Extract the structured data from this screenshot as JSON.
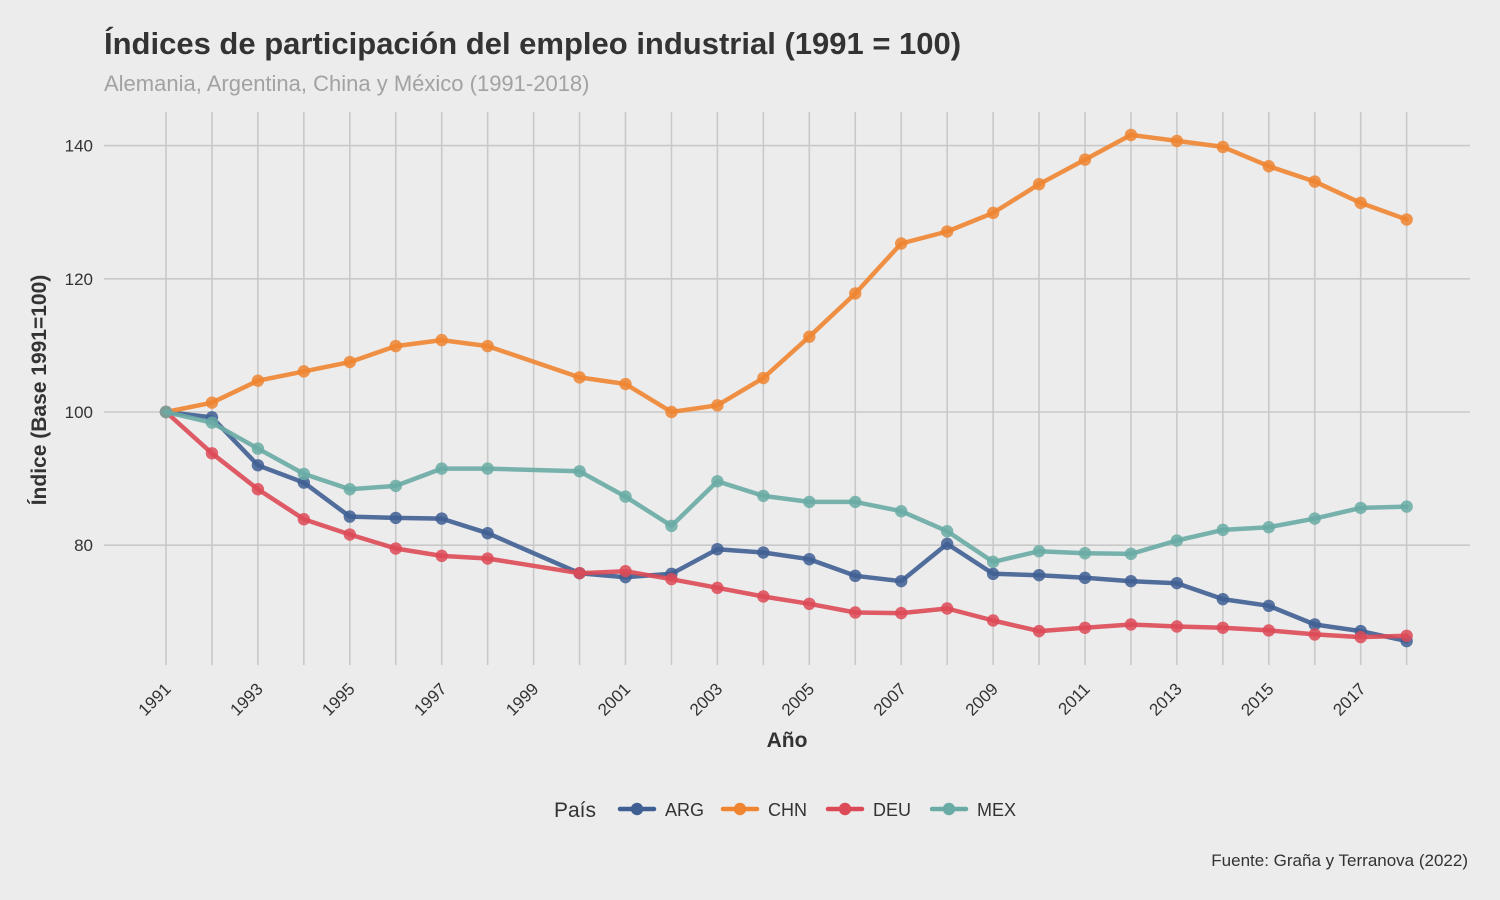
{
  "chart_data": {
    "type": "line",
    "title": "Índices de participación del empleo industrial (1991 = 100)",
    "subtitle": "Alemania, Argentina, China y México (1991-2018)",
    "xlabel": "Año",
    "ylabel": "Índice (Base 1991=100)",
    "caption": "Fuente: Graña y Terranova (2022)",
    "legend_title": "País",
    "legend_position": "bottom",
    "grid": true,
    "xlim": [
      1991,
      2018
    ],
    "ylim": [
      62,
      145
    ],
    "x_ticks": [
      1991,
      1993,
      1995,
      1997,
      1999,
      2001,
      2003,
      2005,
      2007,
      2009,
      2011,
      2013,
      2015,
      2017
    ],
    "x_tick_labels": [
      "1991",
      "1993",
      "1995",
      "1997",
      "1999",
      "2001",
      "2003",
      "2005",
      "2007",
      "2009",
      "2011",
      "2013",
      "2015",
      "2017"
    ],
    "y_ticks": [
      80,
      100,
      120,
      140
    ],
    "y_tick_labels": [
      "80",
      "100",
      "120",
      "140"
    ],
    "series": [
      {
        "name": "ARG",
        "color": "#3f5f93",
        "x": [
          1991,
          1992,
          1993,
          1994,
          1995,
          1996,
          1997,
          1998,
          2000,
          2001,
          2002,
          2003,
          2004,
          2005,
          2006,
          2007,
          2008,
          2009,
          2010,
          2011,
          2012,
          2013,
          2014,
          2015,
          2016,
          2017,
          2018
        ],
        "y": [
          100,
          99.2,
          92,
          89.4,
          84.3,
          84.1,
          84,
          81.8,
          75.8,
          75.2,
          75.7,
          79.4,
          78.9,
          77.9,
          75.4,
          74.6,
          80.2,
          75.7,
          75.5,
          75.1,
          74.6,
          74.3,
          71.9,
          70.9,
          68.1,
          67.1,
          65.6
        ]
      },
      {
        "name": "CHN",
        "color": "#ef8531",
        "x": [
          1991,
          1992,
          1993,
          1994,
          1995,
          1996,
          1997,
          1998,
          2000,
          2001,
          2002,
          2003,
          2004,
          2005,
          2006,
          2007,
          2008,
          2009,
          2010,
          2011,
          2012,
          2013,
          2014,
          2015,
          2016,
          2017,
          2018
        ],
        "y": [
          100,
          101.4,
          104.7,
          106.1,
          107.5,
          109.9,
          110.8,
          109.9,
          105.2,
          104.2,
          100,
          101,
          105.1,
          111.3,
          117.8,
          125.3,
          127.1,
          129.9,
          134.2,
          137.9,
          141.6,
          140.7,
          139.8,
          136.9,
          134.6,
          131.4,
          128.9
        ]
      },
      {
        "name": "DEU",
        "color": "#dd4a57",
        "x": [
          1991,
          1992,
          1993,
          1994,
          1995,
          1996,
          1997,
          1998,
          2000,
          2001,
          2002,
          2003,
          2004,
          2005,
          2006,
          2007,
          2008,
          2009,
          2010,
          2011,
          2012,
          2013,
          2014,
          2015,
          2016,
          2017,
          2018
        ],
        "y": [
          100,
          93.8,
          88.4,
          83.9,
          81.6,
          79.5,
          78.4,
          78,
          75.8,
          76.1,
          74.9,
          73.6,
          72.3,
          71.2,
          69.9,
          69.8,
          70.5,
          68.7,
          67.1,
          67.6,
          68.1,
          67.8,
          67.6,
          67.2,
          66.6,
          66.2,
          66.4
        ]
      },
      {
        "name": "MEX",
        "color": "#6aaba5",
        "x": [
          1991,
          1992,
          1993,
          1994,
          1995,
          1996,
          1997,
          1998,
          2000,
          2001,
          2002,
          2003,
          2004,
          2005,
          2006,
          2007,
          2008,
          2009,
          2010,
          2011,
          2012,
          2013,
          2014,
          2015,
          2016,
          2017,
          2018
        ],
        "y": [
          100,
          98.4,
          94.5,
          90.7,
          88.4,
          88.9,
          91.5,
          91.5,
          91.1,
          87.3,
          82.9,
          89.6,
          87.4,
          86.5,
          86.5,
          85.1,
          82.1,
          77.5,
          79.1,
          78.8,
          78.7,
          80.7,
          82.3,
          82.7,
          84,
          85.6,
          85.8
        ]
      }
    ]
  }
}
